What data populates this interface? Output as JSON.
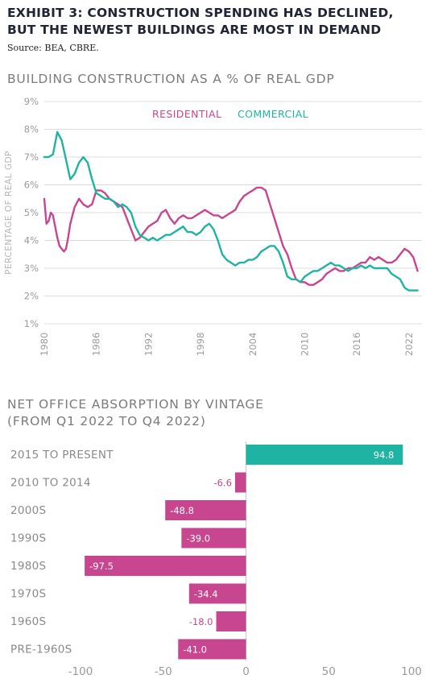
{
  "exhibit": {
    "title_line1": "EXHIBIT 3: CONSTRUCTION SPENDING HAS DECLINED,",
    "title_line2": "BUT THE NEWEST BUILDINGS ARE MOST IN DEMAND",
    "source": "Source: BEA, CBRE."
  },
  "chart_data": [
    {
      "type": "line",
      "title": "BUILDING CONSTRUCTION AS A % OF REAL GDP",
      "ylabel": "PERCENTAGE OF REAL GDP",
      "xlabel": "",
      "xlim": [
        1980,
        2023.5
      ],
      "ylim": [
        1,
        9
      ],
      "y_ticks": [
        "1%",
        "2%",
        "3%",
        "4%",
        "5%",
        "6%",
        "7%",
        "8%",
        "9%"
      ],
      "x_ticks": [
        "1980",
        "1986",
        "1992",
        "1998",
        "2004",
        "2010",
        "2016",
        "2022"
      ],
      "grid": "horizontal",
      "legend": "top-center",
      "series": [
        {
          "name": "RESIDENTIAL",
          "color": "#c8468f",
          "x": [
            1980,
            1980.25,
            1980.5,
            1980.75,
            1981,
            1981.25,
            1981.5,
            1981.75,
            1982,
            1982.25,
            1982.5,
            1982.75,
            1983,
            1983.5,
            1984,
            1984.5,
            1985,
            1985.5,
            1986,
            1986.5,
            1987,
            1987.5,
            1988,
            1988.5,
            1989,
            1989.5,
            1990,
            1990.5,
            1991,
            1991.5,
            1992,
            1992.5,
            1993,
            1993.5,
            1994,
            1994.5,
            1995,
            1995.5,
            1996,
            1996.5,
            1997,
            1997.5,
            1998,
            1998.5,
            1999,
            1999.5,
            2000,
            2000.5,
            2001,
            2001.5,
            2002,
            2002.5,
            2003,
            2003.5,
            2004,
            2004.5,
            2005,
            2005.5,
            2006,
            2006.5,
            2007,
            2007.5,
            2008,
            2008.5,
            2009,
            2009.5,
            2010,
            2010.5,
            2011,
            2011.5,
            2012,
            2012.5,
            2013,
            2013.5,
            2014,
            2014.5,
            2015,
            2015.5,
            2016,
            2016.5,
            2017,
            2017.5,
            2018,
            2018.5,
            2019,
            2019.5,
            2020,
            2020.5,
            2021,
            2021.5,
            2022,
            2022.5,
            2023
          ],
          "values": [
            5.5,
            4.6,
            4.7,
            5.0,
            4.9,
            4.5,
            4.1,
            3.8,
            3.7,
            3.6,
            3.7,
            4.1,
            4.6,
            5.2,
            5.5,
            5.3,
            5.2,
            5.3,
            5.8,
            5.8,
            5.7,
            5.5,
            5.4,
            5.3,
            5.2,
            4.8,
            4.4,
            4.0,
            4.1,
            4.3,
            4.5,
            4.6,
            4.7,
            5.0,
            5.1,
            4.8,
            4.6,
            4.8,
            4.9,
            4.8,
            4.8,
            4.9,
            5.0,
            5.1,
            5.0,
            4.9,
            4.9,
            4.8,
            4.9,
            5.0,
            5.1,
            5.4,
            5.6,
            5.7,
            5.8,
            5.9,
            5.9,
            5.8,
            5.3,
            4.8,
            4.3,
            3.8,
            3.5,
            3.0,
            2.6,
            2.5,
            2.5,
            2.4,
            2.4,
            2.5,
            2.6,
            2.8,
            2.9,
            3.0,
            2.9,
            2.9,
            3.0,
            3.0,
            3.1,
            3.2,
            3.2,
            3.4,
            3.3,
            3.4,
            3.3,
            3.2,
            3.2,
            3.3,
            3.5,
            3.7,
            3.6,
            3.4,
            2.9
          ]
        },
        {
          "name": "COMMERCIAL",
          "color": "#1fb3a3",
          "x": [
            1980,
            1980.5,
            1981,
            1981.5,
            1982,
            1982.5,
            1983,
            1983.5,
            1984,
            1984.5,
            1985,
            1985.5,
            1986,
            1986.5,
            1987,
            1987.5,
            1988,
            1988.5,
            1989,
            1989.5,
            1990,
            1990.5,
            1991,
            1991.5,
            1992,
            1992.5,
            1993,
            1993.5,
            1994,
            1994.5,
            1995,
            1995.5,
            1996,
            1996.5,
            1997,
            1997.5,
            1998,
            1998.5,
            1999,
            1999.5,
            2000,
            2000.5,
            2001,
            2001.5,
            2002,
            2002.5,
            2003,
            2003.5,
            2004,
            2004.5,
            2005,
            2005.5,
            2006,
            2006.5,
            2007,
            2007.5,
            2008,
            2008.5,
            2009,
            2009.5,
            2010,
            2010.5,
            2011,
            2011.5,
            2012,
            2012.5,
            2013,
            2013.5,
            2014,
            2014.5,
            2015,
            2015.5,
            2016,
            2016.5,
            2017,
            2017.5,
            2018,
            2018.5,
            2019,
            2019.5,
            2020,
            2020.5,
            2021,
            2021.5,
            2022,
            2022.5,
            2023
          ],
          "values": [
            7.0,
            7.0,
            7.1,
            7.9,
            7.6,
            6.9,
            6.2,
            6.4,
            6.8,
            7.0,
            6.8,
            6.2,
            5.7,
            5.6,
            5.5,
            5.5,
            5.4,
            5.2,
            5.3,
            5.2,
            5.0,
            4.5,
            4.2,
            4.1,
            4.0,
            4.1,
            4.0,
            4.1,
            4.2,
            4.2,
            4.3,
            4.4,
            4.5,
            4.3,
            4.3,
            4.2,
            4.3,
            4.5,
            4.6,
            4.4,
            4.0,
            3.5,
            3.3,
            3.2,
            3.1,
            3.2,
            3.2,
            3.3,
            3.3,
            3.4,
            3.6,
            3.7,
            3.8,
            3.8,
            3.6,
            3.2,
            2.7,
            2.6,
            2.6,
            2.5,
            2.7,
            2.8,
            2.9,
            2.9,
            3.0,
            3.1,
            3.2,
            3.1,
            3.1,
            3.0,
            2.9,
            3.0,
            3.0,
            3.1,
            3.0,
            3.1,
            3.0,
            3.0,
            3.0,
            3.0,
            2.8,
            2.7,
            2.6,
            2.3,
            2.2,
            2.2,
            2.2
          ]
        }
      ]
    },
    {
      "type": "bar",
      "orientation": "horizontal",
      "title_line1": "NET OFFICE ABSORPTION BY VINTAGE",
      "title_line2": "(FROM Q1 2022 TO Q4 2022)",
      "categories": [
        "2015 TO PRESENT",
        "2010 TO 2014",
        "2000S",
        "1990S",
        "1980S",
        "1970S",
        "1960S",
        "PRE-1960S"
      ],
      "values": [
        94.8,
        -6.6,
        -48.8,
        -39.0,
        -97.5,
        -34.4,
        -18.0,
        -41.0
      ],
      "data_labels": [
        "94.8",
        "-6.6",
        "-48.8",
        "-39.0",
        "-97.5",
        "-34.4",
        "-18.0",
        "-41.0"
      ],
      "xlim": [
        -100,
        100
      ],
      "x_ticks": [
        "-100",
        "-50",
        "0",
        "50",
        "100"
      ],
      "positive_color": "#1fb3a3",
      "negative_color": "#c8468f",
      "xlabel": "",
      "ylabel": ""
    }
  ]
}
